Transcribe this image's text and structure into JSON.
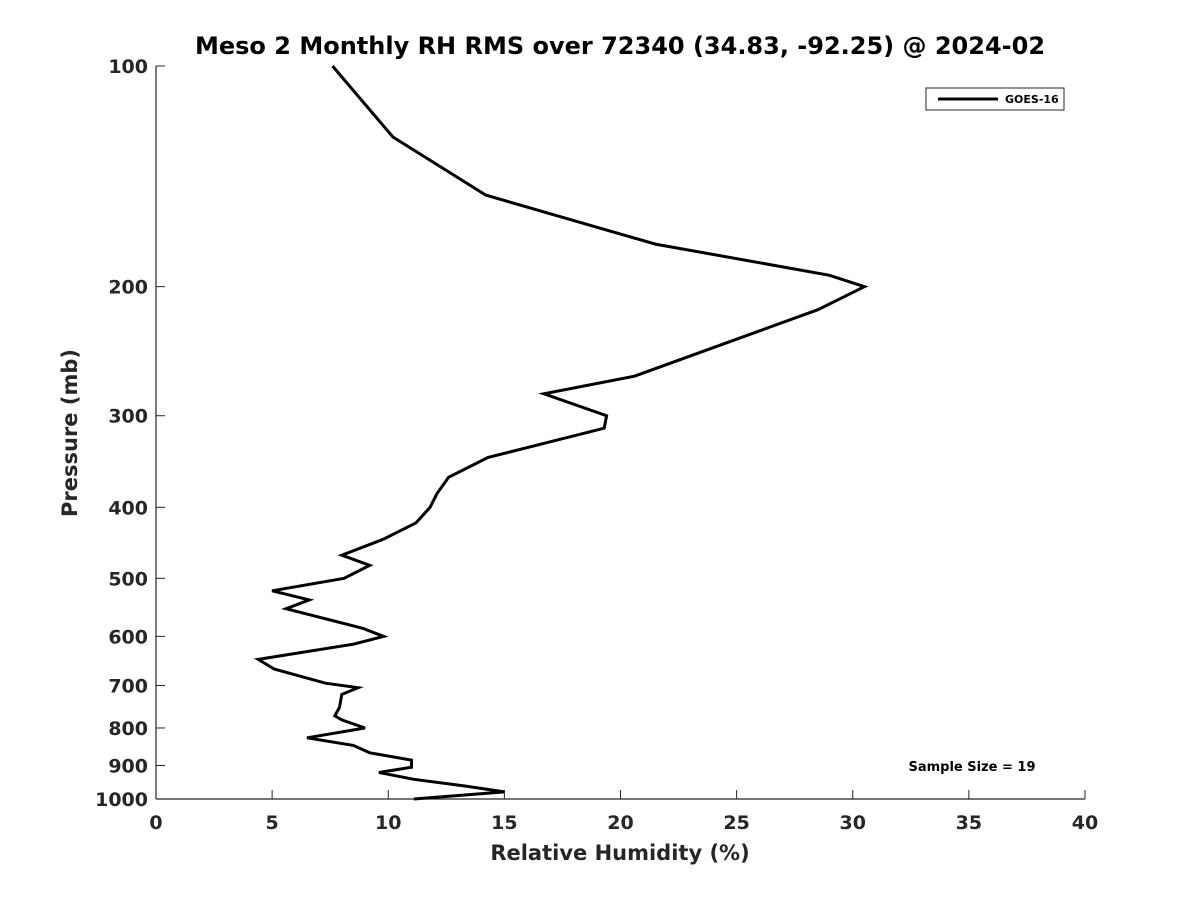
{
  "chart_data": {
    "type": "line",
    "title": "Meso 2 Monthly RH RMS over 72340 (34.83, -92.25) @ 2024-02",
    "xlabel": "Relative Humidity (%)",
    "ylabel": "Pressure (mb)",
    "xlim": [
      0,
      40
    ],
    "ylim": [
      100,
      1000
    ],
    "y_scale": "log",
    "y_inverted": true,
    "x_ticks": [
      0,
      5,
      10,
      15,
      20,
      25,
      30,
      35,
      40
    ],
    "y_ticks": [
      100,
      200,
      300,
      400,
      500,
      600,
      700,
      800,
      900,
      1000
    ],
    "grid": false,
    "legend_position": "top-right",
    "annotation": "Sample Size = 19",
    "series": [
      {
        "name": "GOES-16",
        "color": "#000000",
        "points": [
          [
            7.6,
            100
          ],
          [
            10.2,
            125
          ],
          [
            14.2,
            150
          ],
          [
            21.5,
            175
          ],
          [
            29.0,
            193
          ],
          [
            30.5,
            200
          ],
          [
            28.5,
            215
          ],
          [
            20.6,
            265
          ],
          [
            16.7,
            280
          ],
          [
            19.4,
            300
          ],
          [
            19.3,
            312
          ],
          [
            14.3,
            342
          ],
          [
            12.6,
            364
          ],
          [
            12.1,
            383
          ],
          [
            11.8,
            400
          ],
          [
            11.2,
            420
          ],
          [
            9.8,
            442
          ],
          [
            8.0,
            465
          ],
          [
            9.2,
            480
          ],
          [
            8.1,
            500
          ],
          [
            5.0,
            520
          ],
          [
            6.6,
            535
          ],
          [
            5.6,
            550
          ],
          [
            8.9,
            585
          ],
          [
            9.8,
            600
          ],
          [
            8.5,
            615
          ],
          [
            4.4,
            645
          ],
          [
            5.1,
            665
          ],
          [
            7.3,
            695
          ],
          [
            8.7,
            705
          ],
          [
            8.0,
            720
          ],
          [
            7.9,
            750
          ],
          [
            7.7,
            770
          ],
          [
            8.0,
            780
          ],
          [
            9.0,
            800
          ],
          [
            6.5,
            825
          ],
          [
            8.5,
            845
          ],
          [
            9.2,
            865
          ],
          [
            11.0,
            885
          ],
          [
            11.0,
            905
          ],
          [
            9.6,
            920
          ],
          [
            11.1,
            940
          ],
          [
            13.3,
            960
          ],
          [
            15.0,
            978
          ],
          [
            11.1,
            1000
          ]
        ]
      }
    ]
  }
}
